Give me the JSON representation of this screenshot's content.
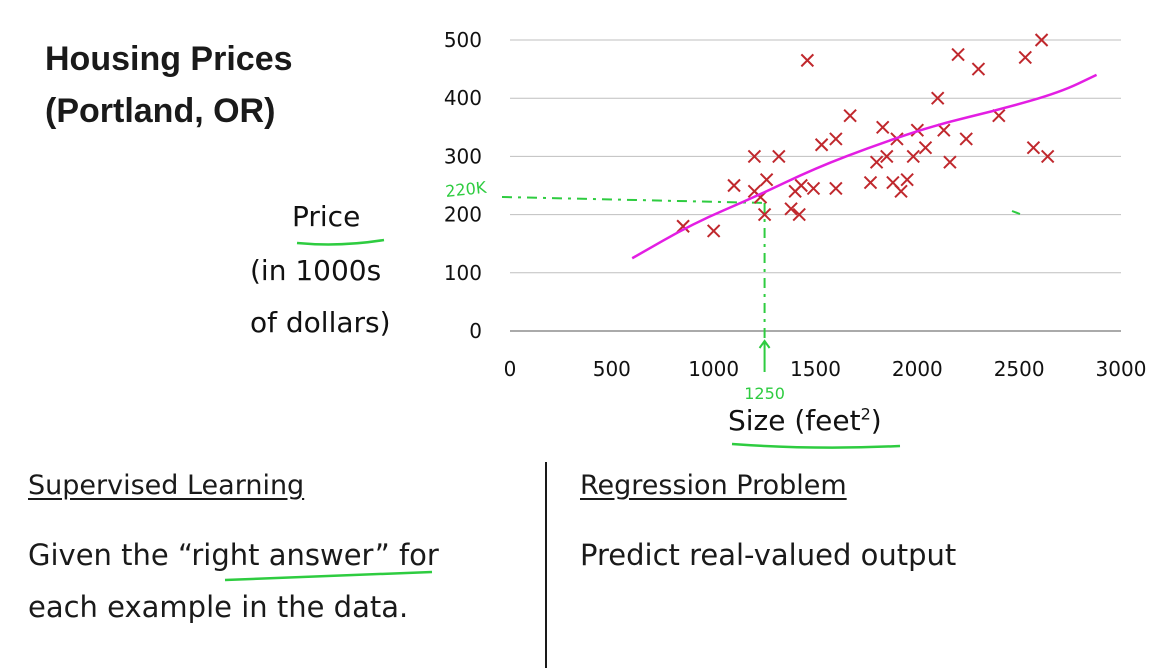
{
  "title_lines": [
    "Housing Prices",
    "(Portland, OR)"
  ],
  "ylabel_lines": [
    "Price",
    "(in 1000s",
    "of dollars)"
  ],
  "xlabel": {
    "text": "Size (feet",
    "superscript": "2",
    "suffix": ")"
  },
  "left_section": {
    "heading": "Supervised Learning",
    "body_lines": [
      "Given the “right answer” for",
      "each example in the data."
    ]
  },
  "right_section": {
    "heading": "Regression Problem",
    "body": "Predict real-valued output"
  },
  "annotations": {
    "price_mark": "220K",
    "size_mark": "1250"
  },
  "colors": {
    "points": "#c0282d",
    "fit_line": "#e31ee3",
    "handwriting": "#2ecc40",
    "grid": "#bfbfbf",
    "text": "#1a1a1a"
  },
  "chart_data": {
    "type": "scatter",
    "xlim": [
      0,
      3000
    ],
    "ylim": [
      0,
      500
    ],
    "x_ticks": [
      0,
      500,
      1000,
      1500,
      2000,
      2500,
      3000
    ],
    "y_ticks": [
      0,
      100,
      200,
      300,
      400,
      500
    ],
    "grid": "horizontal",
    "marker": "x",
    "points": [
      [
        850,
        180
      ],
      [
        1000,
        172
      ],
      [
        1100,
        250
      ],
      [
        1200,
        300
      ],
      [
        1200,
        240
      ],
      [
        1230,
        230
      ],
      [
        1250,
        200
      ],
      [
        1260,
        260
      ],
      [
        1320,
        300
      ],
      [
        1380,
        210
      ],
      [
        1400,
        240
      ],
      [
        1420,
        200
      ],
      [
        1430,
        250
      ],
      [
        1460,
        465
      ],
      [
        1490,
        245
      ],
      [
        1530,
        320
      ],
      [
        1600,
        245
      ],
      [
        1600,
        330
      ],
      [
        1670,
        370
      ],
      [
        1770,
        255
      ],
      [
        1800,
        290
      ],
      [
        1830,
        350
      ],
      [
        1850,
        300
      ],
      [
        1880,
        255
      ],
      [
        1900,
        330
      ],
      [
        1920,
        240
      ],
      [
        1950,
        260
      ],
      [
        1980,
        300
      ],
      [
        2000,
        345
      ],
      [
        2040,
        315
      ],
      [
        2100,
        400
      ],
      [
        2130,
        345
      ],
      [
        2160,
        290
      ],
      [
        2200,
        475
      ],
      [
        2240,
        330
      ],
      [
        2300,
        450
      ],
      [
        2400,
        370
      ],
      [
        2530,
        470
      ],
      [
        2570,
        315
      ],
      [
        2610,
        500
      ],
      [
        2640,
        300
      ]
    ],
    "fit_line": [
      [
        600,
        125
      ],
      [
        900,
        185
      ],
      [
        1200,
        230
      ],
      [
        1500,
        280
      ],
      [
        1800,
        320
      ],
      [
        2100,
        355
      ],
      [
        2400,
        380
      ],
      [
        2700,
        410
      ],
      [
        2880,
        440
      ]
    ],
    "guides": {
      "x": 1250,
      "y": 220
    }
  }
}
